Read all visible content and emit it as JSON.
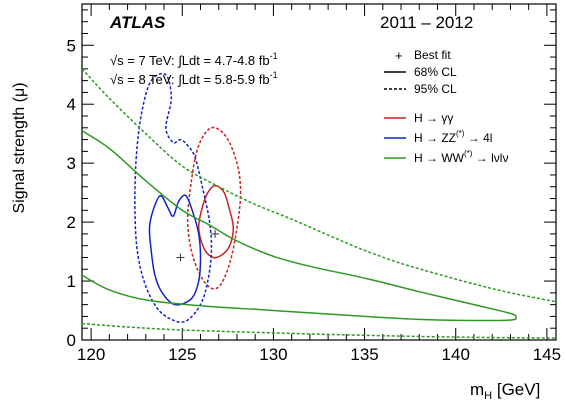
{
  "chart_data": {
    "type": "contour",
    "experiment": "ATLAS",
    "period": "2011 – 2012",
    "lumi_lines": [
      {
        "sqrt_s": "√s = 7 TeV:",
        "lumi": "∫Ldt = 4.7-4.8 fb",
        "exp": "-1"
      },
      {
        "sqrt_s": "√s = 8 TeV:",
        "lumi": "∫Ldt = 5.8-5.9 fb",
        "exp": "-1"
      }
    ],
    "xlabel": "m",
    "xlabel_sub": "H",
    "xlabel_unit": " [GeV]",
    "ylabel": "Signal strength (μ)",
    "xlim": [
      119.5,
      145.5
    ],
    "ylim": [
      0,
      5.7
    ],
    "xticks": [
      120,
      125,
      130,
      135,
      140,
      145
    ],
    "yticks": [
      0,
      1,
      2,
      3,
      4,
      5
    ],
    "legend": {
      "styles": [
        {
          "label": "Best fit",
          "marker": "+"
        },
        {
          "label": "68% CL",
          "dash": "solid"
        },
        {
          "label": "95% CL",
          "dash": "dashed"
        }
      ],
      "channels": [
        {
          "key": "gg",
          "label": "H → γγ"
        },
        {
          "key": "zz",
          "label": "H → ZZ",
          "sup": "(*)",
          "tail": " → 4l"
        },
        {
          "key": "ww",
          "label": "H → WW",
          "sup": "(*)",
          "tail": " → lνlν"
        }
      ]
    },
    "series": [
      {
        "name": "H → γγ",
        "color": "#cc2222",
        "best_fit": [
          126.8,
          1.8
        ],
        "cl68": [
          [
            126.8,
            2.62
          ],
          [
            127.3,
            2.5
          ],
          [
            127.6,
            2.2
          ],
          [
            127.8,
            1.9
          ],
          [
            127.6,
            1.6
          ],
          [
            127.2,
            1.45
          ],
          [
            126.7,
            1.4
          ],
          [
            126.2,
            1.55
          ],
          [
            125.9,
            1.9
          ],
          [
            126.1,
            2.25
          ],
          [
            126.4,
            2.5
          ]
        ],
        "cl95": [
          [
            126.6,
            3.6
          ],
          [
            127.4,
            3.45
          ],
          [
            128.0,
            3.0
          ],
          [
            128.2,
            2.5
          ],
          [
            128.0,
            1.9
          ],
          [
            127.6,
            1.3
          ],
          [
            127.0,
            0.9
          ],
          [
            126.3,
            0.95
          ],
          [
            125.6,
            1.4
          ],
          [
            125.3,
            2.0
          ],
          [
            125.5,
            2.7
          ],
          [
            125.9,
            3.3
          ]
        ]
      },
      {
        "name": "H → ZZ(*) → 4l",
        "color": "#1122cc",
        "best_fit": [
          124.9,
          1.4
        ],
        "cl68": [
          [
            123.8,
            2.45
          ],
          [
            124.2,
            2.25
          ],
          [
            124.5,
            2.1
          ],
          [
            124.8,
            2.35
          ],
          [
            125.2,
            2.45
          ],
          [
            125.6,
            2.15
          ],
          [
            125.9,
            1.8
          ],
          [
            126.0,
            1.4
          ],
          [
            125.9,
            1.0
          ],
          [
            125.5,
            0.7
          ],
          [
            124.6,
            0.6
          ],
          [
            123.9,
            0.8
          ],
          [
            123.5,
            1.1
          ],
          [
            123.3,
            1.5
          ],
          [
            123.2,
            1.9
          ],
          [
            123.4,
            2.2
          ]
        ],
        "cl95": [
          [
            123.3,
            4.4
          ],
          [
            124.1,
            4.5
          ],
          [
            124.4,
            4.1
          ],
          [
            124.1,
            3.6
          ],
          [
            124.5,
            3.35
          ],
          [
            124.9,
            3.4
          ],
          [
            125.3,
            3.3
          ],
          [
            125.7,
            3.1
          ],
          [
            126.1,
            2.6
          ],
          [
            126.5,
            2.0
          ],
          [
            126.6,
            1.5
          ],
          [
            126.4,
            1.0
          ],
          [
            126.0,
            0.6
          ],
          [
            125.2,
            0.32
          ],
          [
            124.4,
            0.35
          ],
          [
            123.6,
            0.55
          ],
          [
            122.9,
            1.0
          ],
          [
            122.5,
            1.6
          ],
          [
            122.4,
            2.4
          ],
          [
            122.5,
            3.2
          ],
          [
            122.8,
            3.9
          ]
        ]
      },
      {
        "name": "H → WW(*) → lνlν",
        "color": "#2e9922",
        "best_fit": null,
        "cl68": [
          [
            119.5,
            3.55
          ],
          [
            121,
            3.25
          ],
          [
            123,
            2.7
          ],
          [
            125,
            2.2
          ],
          [
            126.5,
            1.95
          ],
          [
            128,
            1.68
          ],
          [
            130,
            1.42
          ],
          [
            132,
            1.25
          ],
          [
            135,
            1.05
          ],
          [
            138,
            0.82
          ],
          [
            141,
            0.6
          ],
          [
            143,
            0.45
          ],
          [
            143.3,
            0.38
          ],
          [
            143,
            0.34
          ],
          [
            141,
            0.33
          ],
          [
            138,
            0.35
          ],
          [
            135,
            0.4
          ],
          [
            132,
            0.46
          ],
          [
            129,
            0.52
          ],
          [
            126,
            0.58
          ],
          [
            123,
            0.68
          ],
          [
            121,
            0.85
          ],
          [
            119.5,
            1.1
          ]
        ],
        "cl95": [
          [
            119.5,
            4.6
          ],
          [
            121,
            4.1
          ],
          [
            123,
            3.5
          ],
          [
            125,
            2.95
          ],
          [
            127,
            2.6
          ],
          [
            129,
            2.3
          ],
          [
            131,
            2.05
          ],
          [
            133,
            1.78
          ],
          [
            135,
            1.52
          ],
          [
            137,
            1.3
          ],
          [
            139,
            1.12
          ],
          [
            141,
            0.95
          ],
          [
            143,
            0.8
          ],
          [
            145.5,
            0.65
          ]
        ],
        "cl95_low": [
          [
            119.5,
            0.28
          ],
          [
            122,
            0.22
          ],
          [
            125,
            0.17
          ],
          [
            130,
            0.12
          ],
          [
            135,
            0.08
          ],
          [
            140,
            0.05
          ],
          [
            145.5,
            0.03
          ]
        ]
      }
    ]
  }
}
